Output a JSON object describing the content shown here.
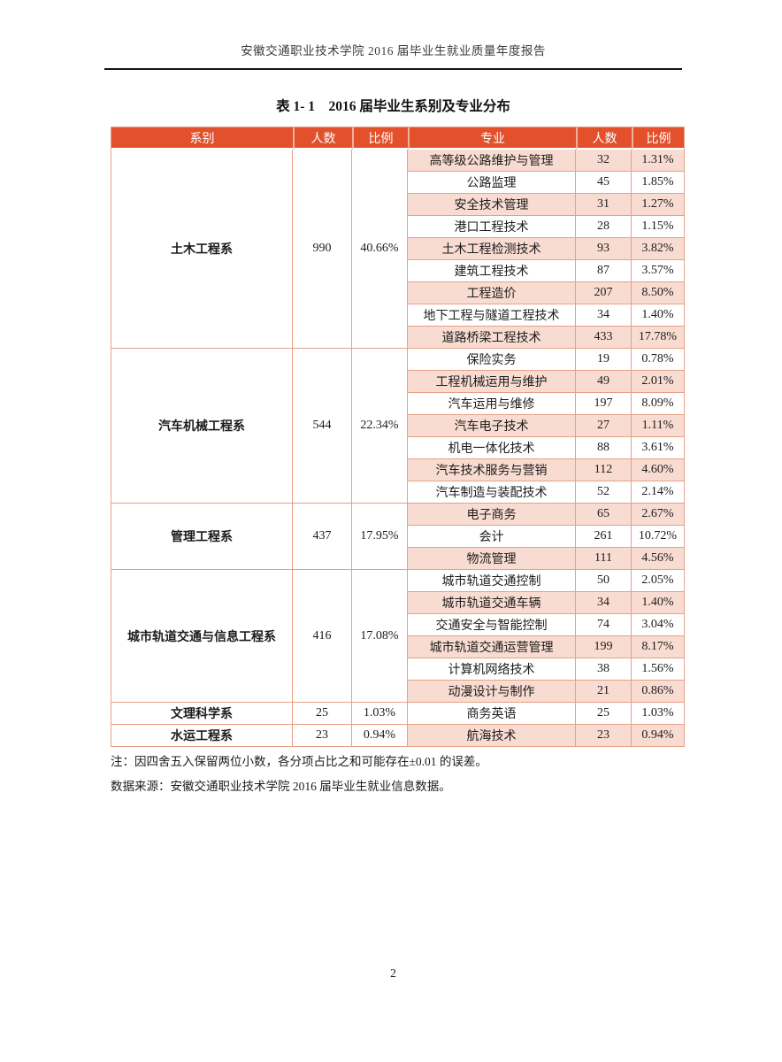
{
  "page": {
    "header": "安徽交通职业技术学院 2016 届毕业生就业质量年度报告",
    "table_title": "表 1- 1　2016 届毕业生系别及专业分布",
    "note_1": "注：因四舍五入保留两位小数，各分项占比之和可能存在±0.01 的误差。",
    "note_2": "数据来源：安徽交通职业技术学院 2016 届毕业生就业信息数据。",
    "page_number": "2"
  },
  "colors": {
    "header_bg": "#e2502c",
    "row_pink": "#f8dbd1",
    "table_border": "#e9a088",
    "rule_black": "#141414"
  },
  "table": {
    "columns": [
      "系别",
      "人数",
      "比例",
      "专业",
      "人数",
      "比例"
    ],
    "departments": [
      {
        "name": "土木工程系",
        "count": "990",
        "ratio": "40.66%",
        "majors": [
          {
            "major": "高等级公路维护与管理",
            "count": "32",
            "ratio": "1.31%"
          },
          {
            "major": "公路监理",
            "count": "45",
            "ratio": "1.85%"
          },
          {
            "major": "安全技术管理",
            "count": "31",
            "ratio": "1.27%"
          },
          {
            "major": "港口工程技术",
            "count": "28",
            "ratio": "1.15%"
          },
          {
            "major": "土木工程检测技术",
            "count": "93",
            "ratio": "3.82%"
          },
          {
            "major": "建筑工程技术",
            "count": "87",
            "ratio": "3.57%"
          },
          {
            "major": "工程造价",
            "count": "207",
            "ratio": "8.50%"
          },
          {
            "major": "地下工程与隧道工程技术",
            "count": "34",
            "ratio": "1.40%"
          },
          {
            "major": "道路桥梁工程技术",
            "count": "433",
            "ratio": "17.78%"
          }
        ]
      },
      {
        "name": "汽车机械工程系",
        "count": "544",
        "ratio": "22.34%",
        "majors": [
          {
            "major": "保险实务",
            "count": "19",
            "ratio": "0.78%"
          },
          {
            "major": "工程机械运用与维护",
            "count": "49",
            "ratio": "2.01%"
          },
          {
            "major": "汽车运用与维修",
            "count": "197",
            "ratio": "8.09%"
          },
          {
            "major": "汽车电子技术",
            "count": "27",
            "ratio": "1.11%"
          },
          {
            "major": "机电一体化技术",
            "count": "88",
            "ratio": "3.61%"
          },
          {
            "major": "汽车技术服务与营销",
            "count": "112",
            "ratio": "4.60%"
          },
          {
            "major": "汽车制造与装配技术",
            "count": "52",
            "ratio": "2.14%"
          }
        ]
      },
      {
        "name": "管理工程系",
        "count": "437",
        "ratio": "17.95%",
        "majors": [
          {
            "major": "电子商务",
            "count": "65",
            "ratio": "2.67%"
          },
          {
            "major": "会计",
            "count": "261",
            "ratio": "10.72%"
          },
          {
            "major": "物流管理",
            "count": "111",
            "ratio": "4.56%"
          }
        ]
      },
      {
        "name": "城市轨道交通与信息工程系",
        "count": "416",
        "ratio": "17.08%",
        "majors": [
          {
            "major": "城市轨道交通控制",
            "count": "50",
            "ratio": "2.05%"
          },
          {
            "major": "城市轨道交通车辆",
            "count": "34",
            "ratio": "1.40%"
          },
          {
            "major": "交通安全与智能控制",
            "count": "74",
            "ratio": "3.04%"
          },
          {
            "major": "城市轨道交通运营管理",
            "count": "199",
            "ratio": "8.17%"
          },
          {
            "major": "计算机网络技术",
            "count": "38",
            "ratio": "1.56%"
          },
          {
            "major": "动漫设计与制作",
            "count": "21",
            "ratio": "0.86%"
          }
        ]
      },
      {
        "name": "文理科学系",
        "count": "25",
        "ratio": "1.03%",
        "majors": [
          {
            "major": "商务英语",
            "count": "25",
            "ratio": "1.03%"
          }
        ]
      },
      {
        "name": "水运工程系",
        "count": "23",
        "ratio": "0.94%",
        "majors": [
          {
            "major": "航海技术",
            "count": "23",
            "ratio": "0.94%"
          }
        ]
      }
    ]
  }
}
